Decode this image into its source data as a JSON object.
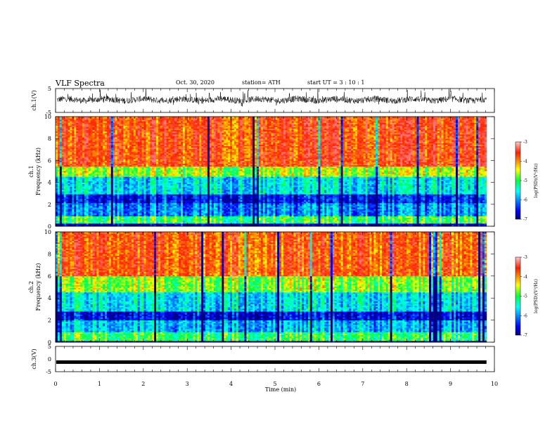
{
  "header": {
    "title": "VLF Spectra",
    "date": "Oct. 30, 2020",
    "station": "station= ATH",
    "start": "start  UT  =   3  : 10 : 1"
  },
  "chart_data": [
    {
      "type": "line",
      "title": "",
      "ylabel": "ch.1(V)",
      "ylim": [
        -5,
        5
      ],
      "yticks": [
        "5",
        "-5"
      ],
      "xlim": [
        0,
        10
      ],
      "series": [
        {
          "name": "",
          "note": "noisy waveform mostly between about -2 and +3 V"
        }
      ]
    },
    {
      "type": "heatmap",
      "ylabel_lines": [
        "ch.1",
        "Frequency  (kHz)"
      ],
      "ylim": [
        0,
        10
      ],
      "yticks": [
        "0",
        "2",
        "4",
        "6",
        "8",
        "10"
      ],
      "xlim": [
        0,
        9.82
      ],
      "colorbar": {
        "label": "log(PSD)(V²/Hz)",
        "range": [
          -7,
          -3
        ],
        "ticks": [
          "-3",
          "-4",
          "-5",
          "-6",
          "-7"
        ],
        "colormap": "jet"
      },
      "bands": [
        {
          "from_khz": 5.5,
          "to_khz": 10,
          "level": -3.6
        },
        {
          "from_khz": 4.5,
          "to_khz": 5.5,
          "level": -4.6
        },
        {
          "from_khz": 3.0,
          "to_khz": 4.5,
          "level": -5.6
        },
        {
          "from_khz": 2.2,
          "to_khz": 3.0,
          "level": -6.5
        },
        {
          "from_khz": 1.0,
          "to_khz": 2.2,
          "level": -6.0
        },
        {
          "from_khz": 0.3,
          "to_khz": 1.0,
          "level": -5.0
        },
        {
          "from_khz": 0.0,
          "to_khz": 0.3,
          "level": -6.8
        }
      ]
    },
    {
      "type": "heatmap",
      "ylabel_lines": [
        "ch.2",
        "Frequency  (kHz)"
      ],
      "ylim": [
        0,
        10
      ],
      "yticks": [
        "0",
        "2",
        "4",
        "6",
        "8",
        "10"
      ],
      "xlim": [
        0,
        9.82
      ],
      "colorbar": {
        "label": "log(PSD)(V²/Hz)",
        "range": [
          -7,
          -3
        ],
        "ticks": [
          "-3",
          "-4",
          "-5",
          "-6",
          "-7"
        ],
        "colormap": "jet"
      },
      "bands": [
        {
          "from_khz": 6.0,
          "to_khz": 10,
          "level": -3.7
        },
        {
          "from_khz": 4.5,
          "to_khz": 6.0,
          "level": -4.7
        },
        {
          "from_khz": 2.8,
          "to_khz": 4.5,
          "level": -5.6
        },
        {
          "from_khz": 2.0,
          "to_khz": 2.8,
          "level": -6.6
        },
        {
          "from_khz": 1.0,
          "to_khz": 2.0,
          "level": -5.8
        },
        {
          "from_khz": 0.2,
          "to_khz": 1.0,
          "level": -5.0
        },
        {
          "from_khz": 0.0,
          "to_khz": 0.2,
          "level": -6.8
        }
      ]
    },
    {
      "type": "line",
      "ylabel": "ch.3(V)",
      "ylim": [
        -5,
        5
      ],
      "yticks": [
        "5",
        "0",
        "-5"
      ],
      "xlim": [
        0,
        10
      ],
      "xlabel": "Time  (min)",
      "xticks": [
        "0",
        "1",
        "2",
        "3",
        "4",
        "5",
        "6",
        "7",
        "8",
        "9",
        "10"
      ],
      "series": [
        {
          "name": "",
          "constant_value": -1.2,
          "x_end": 9.82
        }
      ]
    }
  ]
}
